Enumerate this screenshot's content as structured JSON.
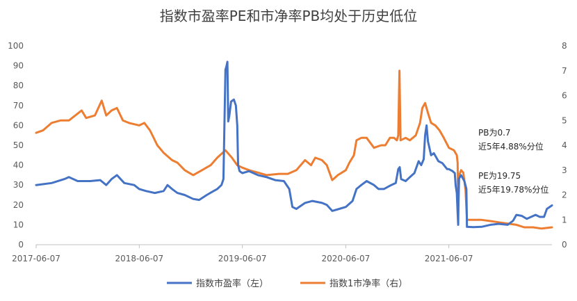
{
  "chart_data": {
    "type": "line",
    "title": "指数市盈率PE和市净率PB均处于历史低位",
    "x_ticks": [
      "2017-06-07",
      "2018-06-07",
      "2019-06-07",
      "2020-06-07",
      "2021-06-07"
    ],
    "x_range": [
      "2017-06-07",
      "2022-06-07"
    ],
    "y_left": {
      "min": 0,
      "max": 100,
      "step": 10,
      "ticks": [
        "0",
        "10",
        "20",
        "30",
        "40",
        "50",
        "60",
        "70",
        "80",
        "90",
        "100"
      ]
    },
    "y_right": {
      "min": 0,
      "max": 8,
      "step": 1,
      "ticks": [
        "0",
        "1",
        "2",
        "3",
        "4",
        "5",
        "6",
        "7",
        "8"
      ]
    },
    "grid": false,
    "legend_position": "bottom",
    "series": [
      {
        "name": "指数市盈率（左）",
        "axis": "left",
        "color": "#4472C4",
        "points": [
          [
            "2017-06-07",
            30
          ],
          [
            "2017-08-01",
            31
          ],
          [
            "2017-09-15",
            33
          ],
          [
            "2017-10-01",
            34
          ],
          [
            "2017-11-01",
            32
          ],
          [
            "2017-12-15",
            32
          ],
          [
            "2018-01-20",
            32.5
          ],
          [
            "2018-02-10",
            30
          ],
          [
            "2018-03-01",
            33
          ],
          [
            "2018-03-20",
            35
          ],
          [
            "2018-04-15",
            31
          ],
          [
            "2018-05-20",
            30
          ],
          [
            "2018-06-07",
            28
          ],
          [
            "2018-07-01",
            27
          ],
          [
            "2018-08-01",
            26
          ],
          [
            "2018-09-01",
            27
          ],
          [
            "2018-09-15",
            30
          ],
          [
            "2018-10-01",
            28
          ],
          [
            "2018-10-20",
            26
          ],
          [
            "2018-11-15",
            25
          ],
          [
            "2018-12-15",
            23
          ],
          [
            "2019-01-05",
            22.5
          ],
          [
            "2019-02-01",
            25
          ],
          [
            "2019-02-25",
            27
          ],
          [
            "2019-03-10",
            28
          ],
          [
            "2019-03-25",
            30
          ],
          [
            "2019-04-01",
            33
          ],
          [
            "2019-04-08",
            88
          ],
          [
            "2019-04-12",
            90
          ],
          [
            "2019-04-15",
            92
          ],
          [
            "2019-04-18",
            62
          ],
          [
            "2019-04-22",
            65
          ],
          [
            "2019-04-28",
            72
          ],
          [
            "2019-05-08",
            73
          ],
          [
            "2019-05-15",
            70
          ],
          [
            "2019-05-20",
            60
          ],
          [
            "2019-05-23",
            40
          ],
          [
            "2019-05-28",
            37
          ],
          [
            "2019-06-07",
            36
          ],
          [
            "2019-07-01",
            37
          ],
          [
            "2019-08-01",
            35
          ],
          [
            "2019-09-01",
            34
          ],
          [
            "2019-10-01",
            32.5
          ],
          [
            "2019-11-01",
            32
          ],
          [
            "2019-11-20",
            28
          ],
          [
            "2019-12-01",
            19
          ],
          [
            "2019-12-15",
            18
          ],
          [
            "2020-01-15",
            21
          ],
          [
            "2020-02-10",
            22
          ],
          [
            "2020-03-15",
            21
          ],
          [
            "2020-04-01",
            20
          ],
          [
            "2020-04-20",
            17
          ],
          [
            "2020-05-15",
            18
          ],
          [
            "2020-06-07",
            19
          ],
          [
            "2020-07-01",
            22
          ],
          [
            "2020-07-15",
            28
          ],
          [
            "2020-08-01",
            30
          ],
          [
            "2020-08-20",
            32
          ],
          [
            "2020-09-15",
            30
          ],
          [
            "2020-10-01",
            28
          ],
          [
            "2020-10-20",
            28
          ],
          [
            "2020-11-15",
            30
          ],
          [
            "2020-12-01",
            31
          ],
          [
            "2020-12-10",
            38
          ],
          [
            "2020-12-15",
            39
          ],
          [
            "2020-12-20",
            33
          ],
          [
            "2021-01-05",
            32
          ],
          [
            "2021-01-20",
            34
          ],
          [
            "2021-02-05",
            36
          ],
          [
            "2021-02-20",
            42
          ],
          [
            "2021-03-01",
            40
          ],
          [
            "2021-03-10",
            43
          ],
          [
            "2021-03-15",
            55
          ],
          [
            "2021-03-20",
            60
          ],
          [
            "2021-03-25",
            52
          ],
          [
            "2021-04-05",
            45
          ],
          [
            "2021-04-15",
            46
          ],
          [
            "2021-05-01",
            42
          ],
          [
            "2021-05-15",
            41
          ],
          [
            "2021-06-01",
            38
          ],
          [
            "2021-06-07",
            38
          ],
          [
            "2021-06-20",
            37
          ],
          [
            "2021-06-28",
            36
          ],
          [
            "2021-07-01",
            30
          ],
          [
            "2021-07-05",
            26
          ],
          [
            "2021-07-08",
            16
          ],
          [
            "2021-07-10",
            10
          ],
          [
            "2021-07-12",
            33
          ],
          [
            "2021-07-20",
            35
          ],
          [
            "2021-08-01",
            32
          ],
          [
            "2021-08-08",
            28
          ],
          [
            "2021-08-10",
            9
          ],
          [
            "2021-09-01",
            8.8
          ],
          [
            "2021-10-01",
            9
          ],
          [
            "2021-11-01",
            10
          ],
          [
            "2021-12-01",
            10.5
          ],
          [
            "2022-01-01",
            10
          ],
          [
            "2022-01-20",
            12
          ],
          [
            "2022-02-01",
            15
          ],
          [
            "2022-02-20",
            14.5
          ],
          [
            "2022-03-10",
            13
          ],
          [
            "2022-03-25",
            14
          ],
          [
            "2022-04-10",
            15
          ],
          [
            "2022-04-25",
            14
          ],
          [
            "2022-05-10",
            14
          ],
          [
            "2022-05-20",
            18
          ],
          [
            "2022-06-07",
            19.75
          ]
        ]
      },
      {
        "name": "指数1市净率（右）",
        "axis": "right",
        "color": "#ED7D31",
        "points": [
          [
            "2017-06-07",
            4.5
          ],
          [
            "2017-07-01",
            4.6
          ],
          [
            "2017-08-01",
            4.9
          ],
          [
            "2017-09-01",
            5.0
          ],
          [
            "2017-10-01",
            5.0
          ],
          [
            "2017-11-15",
            5.4
          ],
          [
            "2017-12-01",
            5.1
          ],
          [
            "2018-01-01",
            5.2
          ],
          [
            "2018-01-25",
            5.8
          ],
          [
            "2018-02-10",
            5.2
          ],
          [
            "2018-03-01",
            5.4
          ],
          [
            "2018-03-20",
            5.5
          ],
          [
            "2018-04-10",
            5.0
          ],
          [
            "2018-05-01",
            4.9
          ],
          [
            "2018-06-07",
            4.8
          ],
          [
            "2018-06-25",
            4.9
          ],
          [
            "2018-07-15",
            4.6
          ],
          [
            "2018-08-10",
            4.0
          ],
          [
            "2018-09-01",
            3.7
          ],
          [
            "2018-10-01",
            3.4
          ],
          [
            "2018-10-20",
            3.3
          ],
          [
            "2018-11-15",
            3.0
          ],
          [
            "2018-12-15",
            2.8
          ],
          [
            "2019-01-15",
            3.0
          ],
          [
            "2019-02-15",
            3.2
          ],
          [
            "2019-03-10",
            3.5
          ],
          [
            "2019-04-08",
            3.8
          ],
          [
            "2019-05-01",
            3.5
          ],
          [
            "2019-05-20",
            3.2
          ],
          [
            "2019-06-07",
            3.1
          ],
          [
            "2019-07-01",
            3.0
          ],
          [
            "2019-08-01",
            2.9
          ],
          [
            "2019-09-01",
            2.8
          ],
          [
            "2019-10-15",
            2.85
          ],
          [
            "2019-11-15",
            2.85
          ],
          [
            "2019-12-15",
            3.0
          ],
          [
            "2020-01-15",
            3.4
          ],
          [
            "2020-02-05",
            3.2
          ],
          [
            "2020-02-20",
            3.5
          ],
          [
            "2020-03-15",
            3.4
          ],
          [
            "2020-04-01",
            3.2
          ],
          [
            "2020-04-20",
            2.6
          ],
          [
            "2020-05-10",
            2.8
          ],
          [
            "2020-06-07",
            3.0
          ],
          [
            "2020-06-20",
            3.3
          ],
          [
            "2020-07-06",
            3.6
          ],
          [
            "2020-07-15",
            4.2
          ],
          [
            "2020-08-01",
            4.3
          ],
          [
            "2020-08-20",
            4.3
          ],
          [
            "2020-09-15",
            3.9
          ],
          [
            "2020-10-10",
            4.0
          ],
          [
            "2020-10-25",
            4.0
          ],
          [
            "2020-11-10",
            4.3
          ],
          [
            "2020-11-25",
            4.3
          ],
          [
            "2020-12-05",
            4.2
          ],
          [
            "2020-12-10",
            4.4
          ],
          [
            "2020-12-14",
            7.0
          ],
          [
            "2020-12-18",
            4.2
          ],
          [
            "2021-01-05",
            4.3
          ],
          [
            "2021-01-20",
            4.2
          ],
          [
            "2021-02-10",
            4.4
          ],
          [
            "2021-02-25",
            4.9
          ],
          [
            "2021-03-05",
            5.5
          ],
          [
            "2021-03-15",
            5.7
          ],
          [
            "2021-03-25",
            5.3
          ],
          [
            "2021-04-05",
            4.9
          ],
          [
            "2021-04-20",
            4.8
          ],
          [
            "2021-05-05",
            4.6
          ],
          [
            "2021-05-20",
            4.3
          ],
          [
            "2021-06-07",
            3.9
          ],
          [
            "2021-06-25",
            3.8
          ],
          [
            "2021-07-05",
            3.6
          ],
          [
            "2021-07-08",
            3.3
          ],
          [
            "2021-07-10",
            1.3
          ],
          [
            "2021-07-14",
            2.8
          ],
          [
            "2021-07-20",
            3.0
          ],
          [
            "2021-07-28",
            2.9
          ],
          [
            "2021-08-05",
            2.2
          ],
          [
            "2021-08-10",
            1.0
          ],
          [
            "2021-09-01",
            1.0
          ],
          [
            "2021-10-01",
            1.0
          ],
          [
            "2021-11-01",
            0.95
          ],
          [
            "2021-12-01",
            0.9
          ],
          [
            "2022-01-01",
            0.85
          ],
          [
            "2022-02-01",
            0.8
          ],
          [
            "2022-03-01",
            0.7
          ],
          [
            "2022-04-01",
            0.7
          ],
          [
            "2022-05-01",
            0.65
          ],
          [
            "2022-06-07",
            0.7
          ]
        ]
      }
    ],
    "annotations": [
      {
        "lines": [
          "PB为0.7",
          "近5年4.88%分位"
        ]
      },
      {
        "lines": [
          "PE为19.75",
          "近5年19.78%分位"
        ]
      }
    ]
  }
}
